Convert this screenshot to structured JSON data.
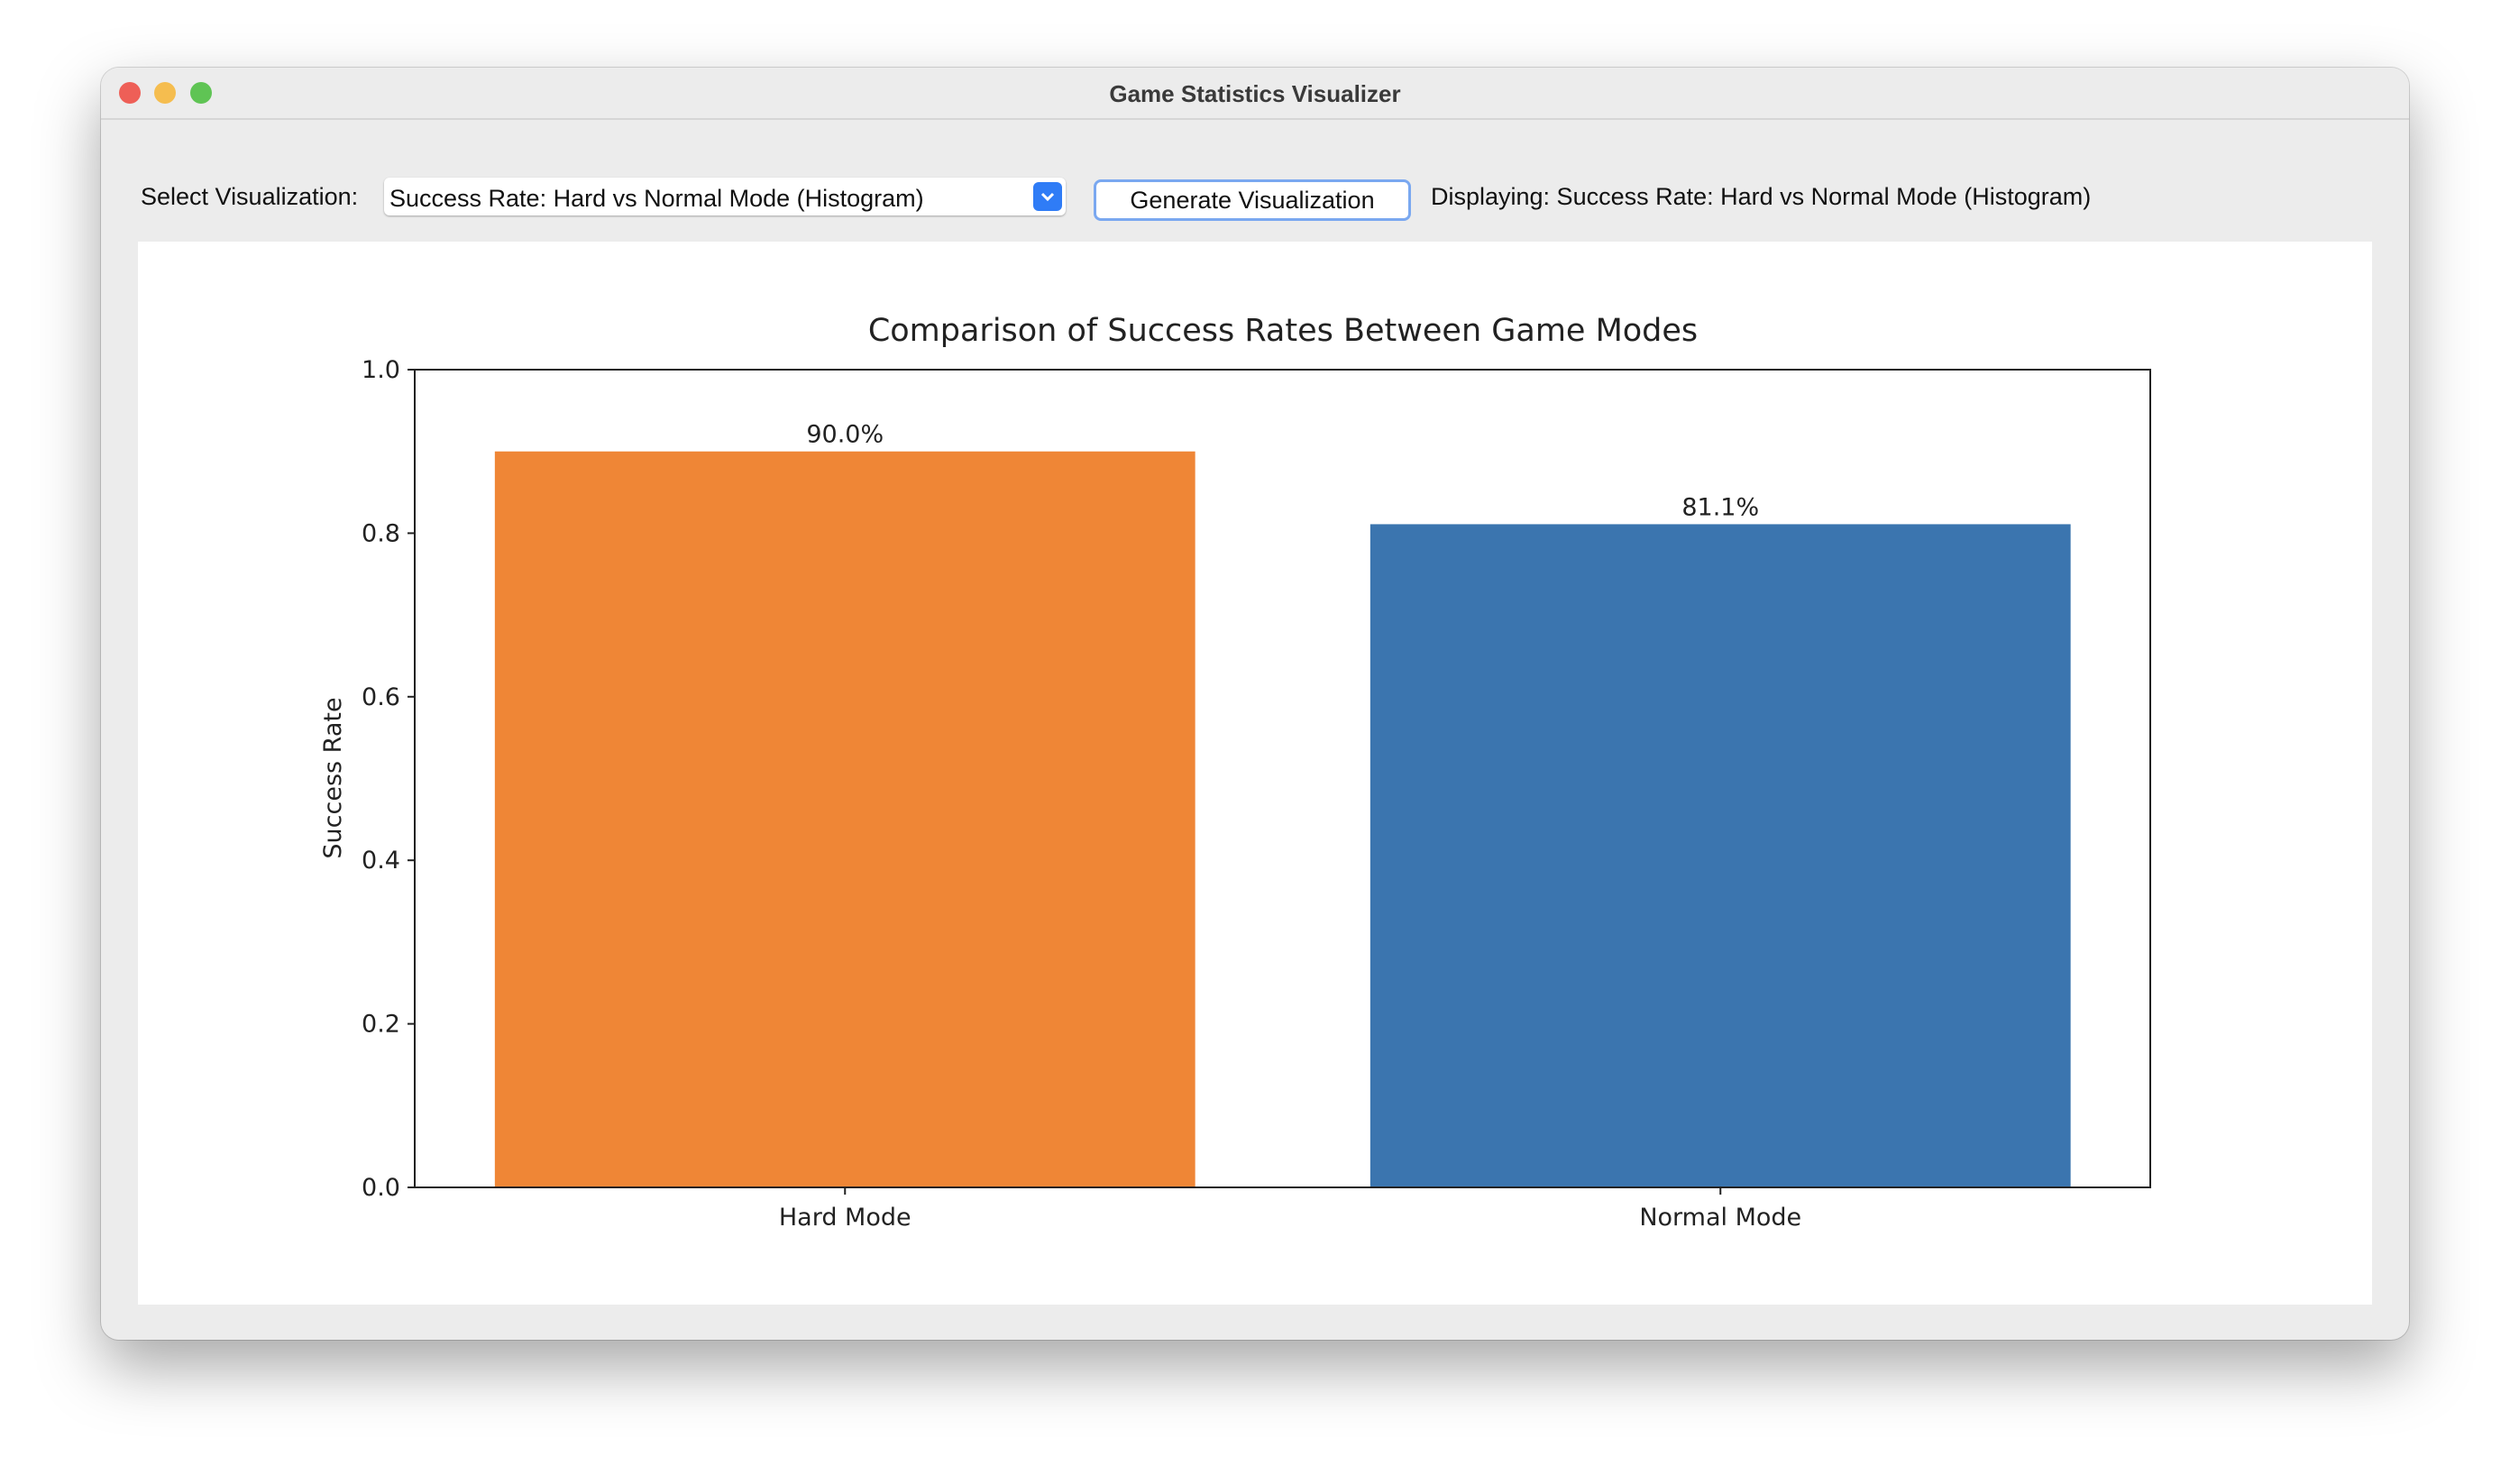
{
  "window": {
    "title": "Game Statistics Visualizer"
  },
  "toolbar": {
    "select_label": "Select Visualization:",
    "select_value": "Success Rate: Hard vs Normal Mode (Histogram)",
    "button": "Generate Visualization",
    "status": "Displaying: Success Rate: Hard vs Normal Mode (Histogram)"
  },
  "chart_data": {
    "type": "bar",
    "title": "Comparison of Success Rates Between Game Modes",
    "y_label": "Success Rate",
    "categories": [
      "Hard Mode",
      "Normal Mode"
    ],
    "values": [
      0.9,
      0.811
    ],
    "value_labels": [
      "90.0%",
      "81.1%"
    ],
    "colors": [
      "#ef8636",
      "#3b75af"
    ],
    "ylim": [
      0,
      1
    ],
    "yticks": [
      {
        "value": 0,
        "label": "0.0"
      },
      {
        "value": 0.2,
        "label": "0.2"
      },
      {
        "value": 0.4,
        "label": "0.4"
      },
      {
        "value": 0.6,
        "label": "0.6"
      },
      {
        "value": 0.8,
        "label": "0.8"
      },
      {
        "value": 1,
        "label": "1.0"
      }
    ]
  }
}
